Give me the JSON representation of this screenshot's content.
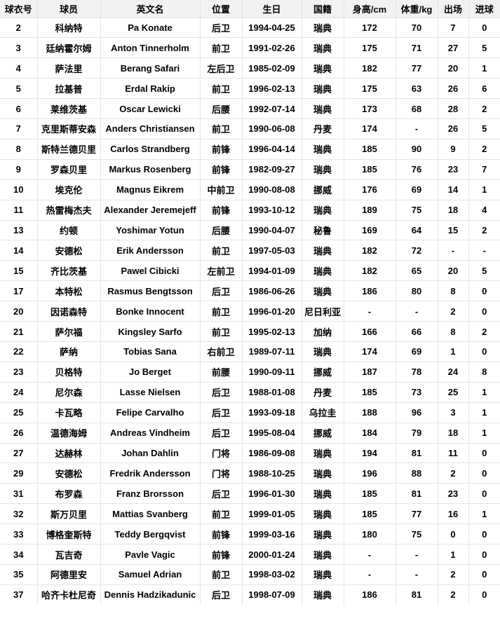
{
  "page": {
    "background_color": "#ffffff"
  },
  "table": {
    "header_background_color": "#f2f2f2",
    "border_color": "#e4e4e4",
    "text_color": "#000000",
    "columns": [
      {
        "key": "jersey-number",
        "label": "球衣号"
      },
      {
        "key": "player-name-cn",
        "label": "球员"
      },
      {
        "key": "player-name-en",
        "label": "英文名"
      },
      {
        "key": "position",
        "label": "位置"
      },
      {
        "key": "birthdate",
        "label": "生日"
      },
      {
        "key": "nationality",
        "label": "国籍"
      },
      {
        "key": "height-cm",
        "label": "身高/cm"
      },
      {
        "key": "weight-kg",
        "label": "体重/kg"
      },
      {
        "key": "appearances",
        "label": "出场"
      },
      {
        "key": "goals",
        "label": "进球"
      }
    ],
    "rows": [
      [
        "2",
        "科纳特",
        "Pa Konate",
        "后卫",
        "1994-04-25",
        "瑞典",
        "172",
        "70",
        "7",
        "0"
      ],
      [
        "3",
        "廷纳霍尔姆",
        "Anton Tinnerholm",
        "前卫",
        "1991-02-26",
        "瑞典",
        "175",
        "71",
        "27",
        "5"
      ],
      [
        "4",
        "萨法里",
        "Berang Safari",
        "左后卫",
        "1985-02-09",
        "瑞典",
        "182",
        "77",
        "20",
        "1"
      ],
      [
        "5",
        "拉基普",
        "Erdal Rakip",
        "前卫",
        "1996-02-13",
        "瑞典",
        "175",
        "63",
        "26",
        "6"
      ],
      [
        "6",
        "莱维茨基",
        "Oscar Lewicki",
        "后腰",
        "1992-07-14",
        "瑞典",
        "173",
        "68",
        "28",
        "2"
      ],
      [
        "7",
        "克里斯蒂安森",
        "Anders Christiansen",
        "前卫",
        "1990-06-08",
        "丹麦",
        "174",
        "-",
        "26",
        "5"
      ],
      [
        "8",
        "斯特兰德贝里",
        "Carlos Strandberg",
        "前锋",
        "1996-04-14",
        "瑞典",
        "185",
        "90",
        "9",
        "2"
      ],
      [
        "9",
        "罗森贝里",
        "Markus Rosenberg",
        "前锋",
        "1982-09-27",
        "瑞典",
        "185",
        "76",
        "23",
        "7"
      ],
      [
        "10",
        "埃克伦",
        "Magnus Eikrem",
        "中前卫",
        "1990-08-08",
        "挪威",
        "176",
        "69",
        "14",
        "1"
      ],
      [
        "11",
        "热雷梅杰夫",
        "Alexander Jeremejeff",
        "前锋",
        "1993-10-12",
        "瑞典",
        "189",
        "75",
        "18",
        "4"
      ],
      [
        "13",
        "约顿",
        "Yoshimar Yotun",
        "后腰",
        "1990-04-07",
        "秘鲁",
        "169",
        "64",
        "15",
        "2"
      ],
      [
        "14",
        "安德松",
        "Erik Andersson",
        "前卫",
        "1997-05-03",
        "瑞典",
        "182",
        "72",
        "-",
        "-"
      ],
      [
        "15",
        "齐比茨基",
        "Pawel Cibicki",
        "左前卫",
        "1994-01-09",
        "瑞典",
        "182",
        "65",
        "20",
        "5"
      ],
      [
        "17",
        "本特松",
        "Rasmus Bengtsson",
        "后卫",
        "1986-06-26",
        "瑞典",
        "186",
        "80",
        "8",
        "0"
      ],
      [
        "20",
        "因诺森特",
        "Bonke Innocent",
        "前卫",
        "1996-01-20",
        "尼日利亚",
        "-",
        "-",
        "2",
        "0"
      ],
      [
        "21",
        "萨尔福",
        "Kingsley Sarfo",
        "前卫",
        "1995-02-13",
        "加纳",
        "166",
        "66",
        "8",
        "2"
      ],
      [
        "22",
        "萨纳",
        "Tobias Sana",
        "右前卫",
        "1989-07-11",
        "瑞典",
        "174",
        "69",
        "1",
        "0"
      ],
      [
        "23",
        "贝格特",
        "Jo Berget",
        "前腰",
        "1990-09-11",
        "挪威",
        "187",
        "78",
        "24",
        "8"
      ],
      [
        "24",
        "尼尔森",
        "Lasse Nielsen",
        "后卫",
        "1988-01-08",
        "丹麦",
        "185",
        "73",
        "25",
        "1"
      ],
      [
        "25",
        "卡瓦略",
        "Felipe Carvalho",
        "后卫",
        "1993-09-18",
        "乌拉圭",
        "188",
        "96",
        "3",
        "1"
      ],
      [
        "26",
        "温德海姆",
        "Andreas Vindheim",
        "后卫",
        "1995-08-04",
        "挪威",
        "184",
        "79",
        "18",
        "1"
      ],
      [
        "27",
        "达赫林",
        "Johan Dahlin",
        "门将",
        "1986-09-08",
        "瑞典",
        "194",
        "81",
        "11",
        "0"
      ],
      [
        "29",
        "安德松",
        "Fredrik Andersson",
        "门将",
        "1988-10-25",
        "瑞典",
        "196",
        "88",
        "2",
        "0"
      ],
      [
        "31",
        "布罗森",
        "Franz Brorsson",
        "后卫",
        "1996-01-30",
        "瑞典",
        "185",
        "81",
        "23",
        "0"
      ],
      [
        "32",
        "斯万贝里",
        "Mattias Svanberg",
        "前卫",
        "1999-01-05",
        "瑞典",
        "185",
        "77",
        "16",
        "1"
      ],
      [
        "33",
        "博格奎斯特",
        "Teddy Bergqvist",
        "前锋",
        "1999-03-16",
        "瑞典",
        "180",
        "75",
        "0",
        "0"
      ],
      [
        "34",
        "瓦吉奇",
        "Pavle Vagic",
        "前锋",
        "2000-01-24",
        "瑞典",
        "-",
        "-",
        "1",
        "0"
      ],
      [
        "35",
        "阿德里安",
        "Samuel Adrian",
        "前卫",
        "1998-03-02",
        "瑞典",
        "-",
        "-",
        "2",
        "0"
      ],
      [
        "37",
        "哈齐卡杜尼奇",
        "Dennis Hadzikadunic",
        "后卫",
        "1998-07-09",
        "瑞典",
        "186",
        "81",
        "2",
        "0"
      ]
    ]
  }
}
